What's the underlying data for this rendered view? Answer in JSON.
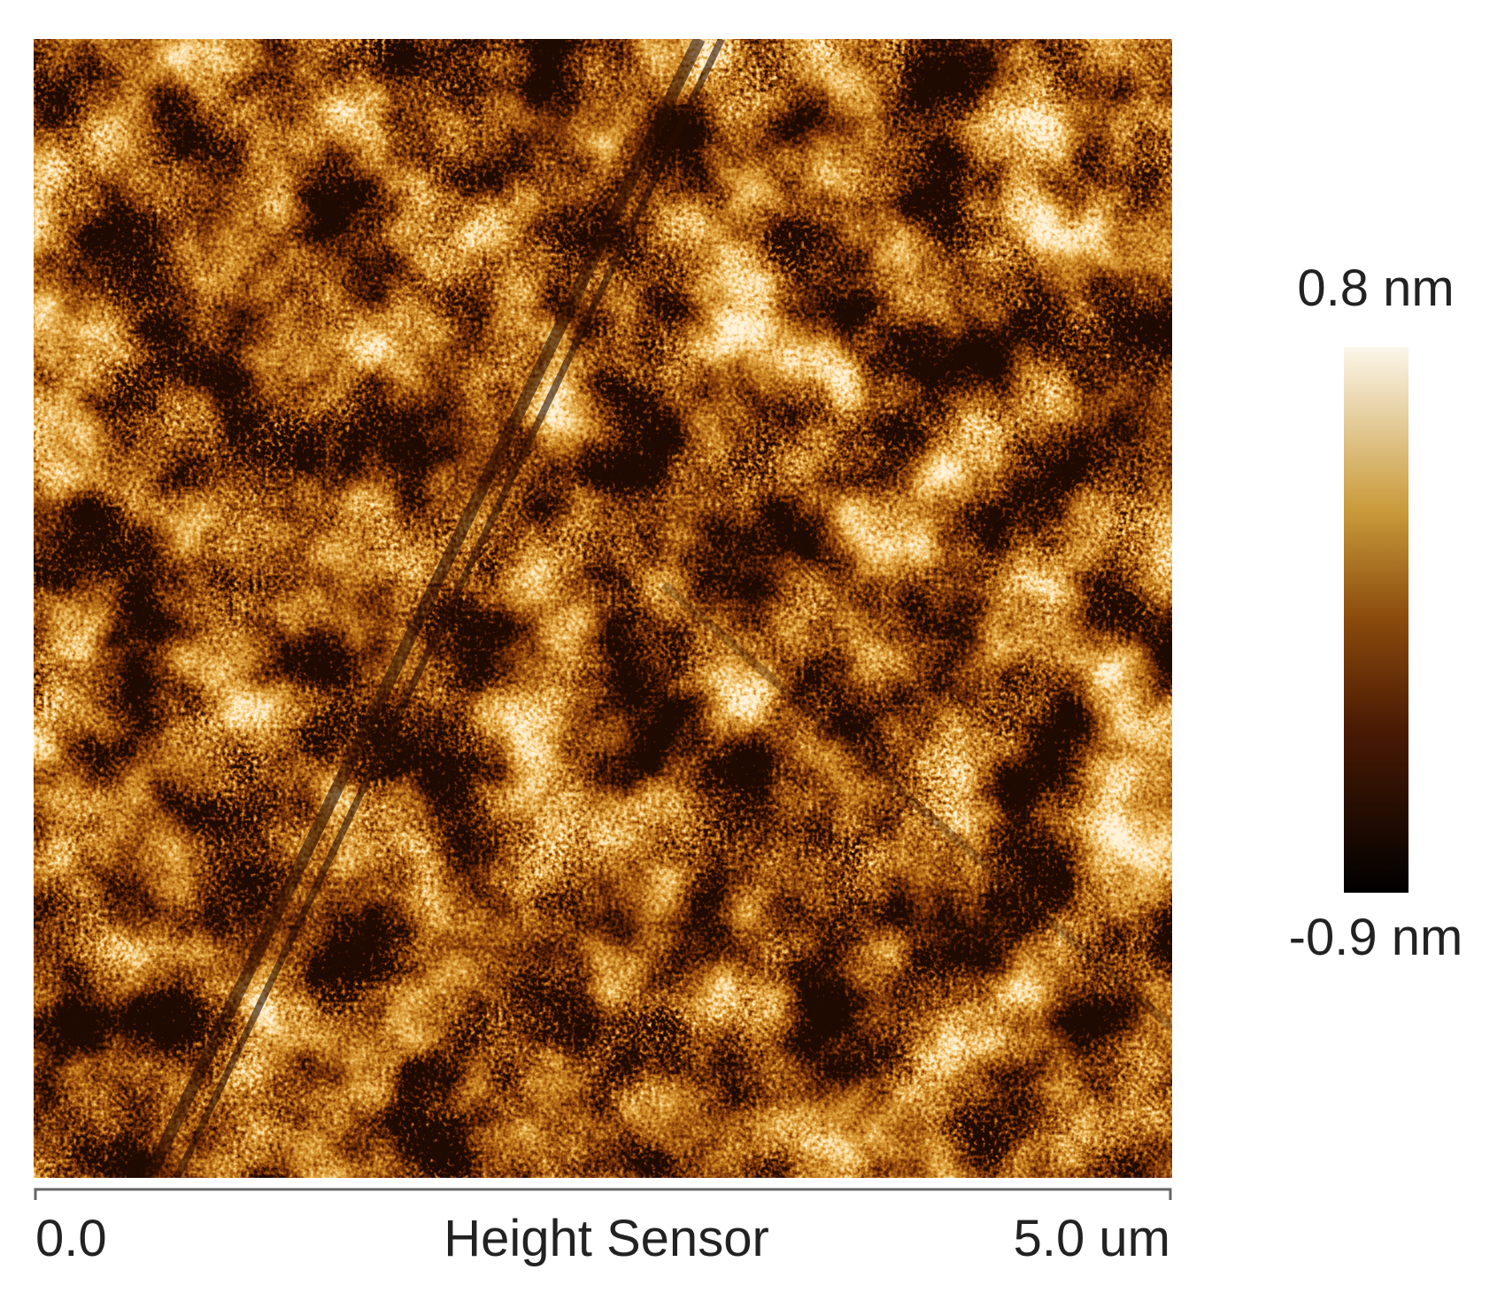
{
  "colorbar": {
    "max_label": "0.8 nm",
    "min_label": "-0.9 nm"
  },
  "axis": {
    "start": "0.0",
    "title": "Height Sensor",
    "end": "5.0 um"
  }
}
